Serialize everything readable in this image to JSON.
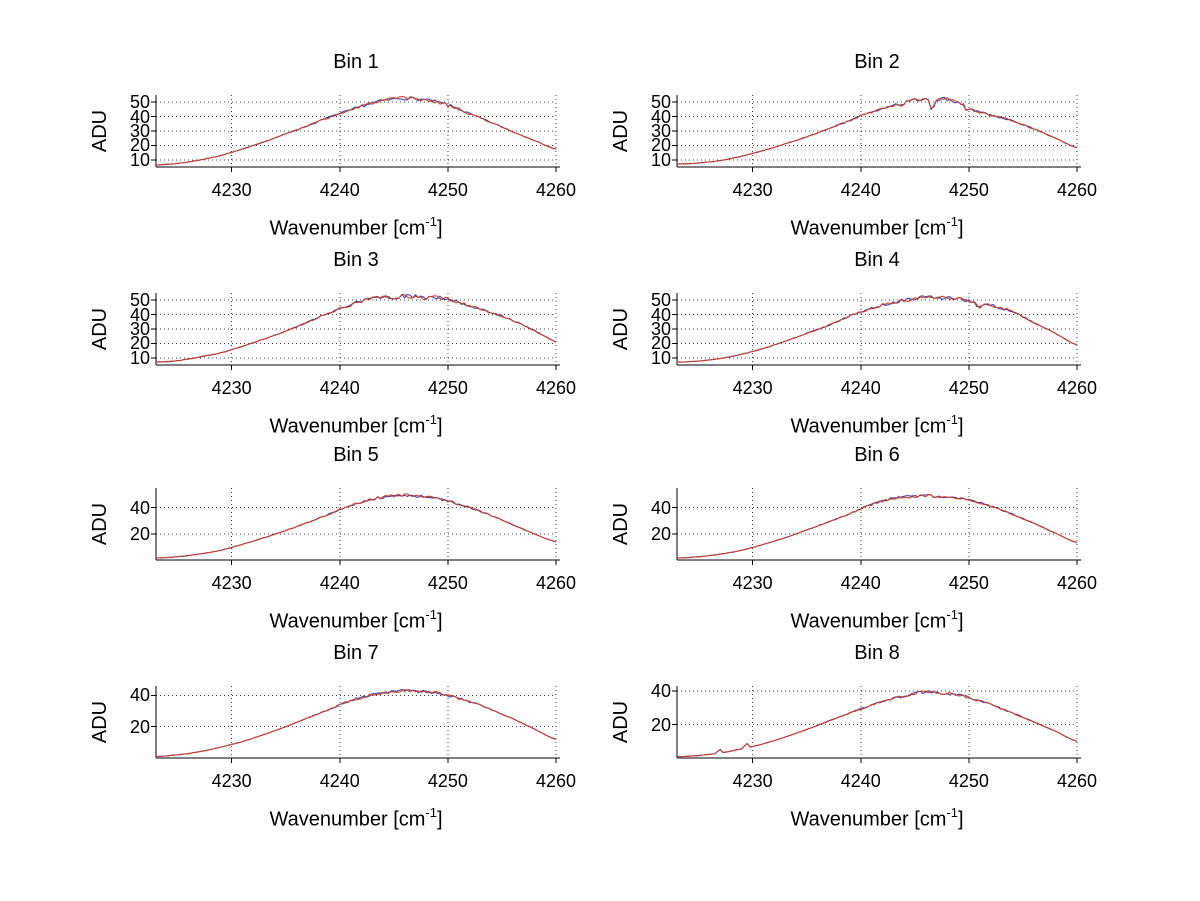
{
  "figure_name": "Spectra per bin",
  "axis_labels": {
    "y": "ADU",
    "x_base": "Wavenumber [cm",
    "x_sup": "-1",
    "x_close": "]"
  },
  "colors": {
    "line": "#c8402c",
    "underlay": "#4343ae",
    "grid": "#3c3c3c",
    "axis": "#000000",
    "text": "#000000",
    "background": "#ffffff"
  },
  "chart_data": [
    {
      "type": "line",
      "title": "Bin 1",
      "xlabel": "Wavenumber [cm^-1]",
      "ylabel": "ADU",
      "xlim": [
        4223,
        4260
      ],
      "ylim": [
        5,
        55
      ],
      "xticks": [
        4230,
        4240,
        4250,
        4260
      ],
      "yticks": [
        10,
        20,
        30,
        40,
        50
      ],
      "grid": "dotted",
      "legend": "none",
      "noise_amp": 0.8,
      "spikes": [],
      "points": [
        [
          4223,
          6.5
        ],
        [
          4225,
          7.5
        ],
        [
          4227,
          9.8
        ],
        [
          4229,
          13
        ],
        [
          4231,
          17.5
        ],
        [
          4233,
          22.5
        ],
        [
          4235,
          28
        ],
        [
          4237,
          33.5
        ],
        [
          4239,
          39.5
        ],
        [
          4241,
          44.5
        ],
        [
          4243,
          49.5
        ],
        [
          4245,
          52
        ],
        [
          4246,
          52.8
        ],
        [
          4248,
          51.5
        ],
        [
          4249,
          50
        ],
        [
          4250,
          48
        ],
        [
          4252,
          42
        ],
        [
          4254,
          36
        ],
        [
          4256,
          29.5
        ],
        [
          4258,
          23.5
        ],
        [
          4260,
          17.5
        ]
      ]
    },
    {
      "type": "line",
      "title": "Bin 2",
      "xlabel": "Wavenumber [cm^-1]",
      "ylabel": "ADU",
      "xlim": [
        4223,
        4260
      ],
      "ylim": [
        5,
        55
      ],
      "xticks": [
        4230,
        4240,
        4250,
        4260
      ],
      "yticks": [
        10,
        20,
        30,
        40,
        50
      ],
      "grid": "dotted",
      "legend": "none",
      "noise_amp": 0.8,
      "spikes": [
        {
          "x": 4246.6,
          "dv": -10.5,
          "w": 0.16
        },
        {
          "x": 4243.6,
          "dv": -2.5,
          "w": 0.14
        },
        {
          "x": 4249.8,
          "dv": -2.0,
          "w": 0.12
        }
      ],
      "points": [
        [
          4223,
          7
        ],
        [
          4225,
          7.8
        ],
        [
          4227,
          9.5
        ],
        [
          4229,
          12.5
        ],
        [
          4231,
          16.5
        ],
        [
          4233,
          21
        ],
        [
          4235,
          26
        ],
        [
          4237,
          31.5
        ],
        [
          4239,
          37.5
        ],
        [
          4241,
          43
        ],
        [
          4243,
          47.5
        ],
        [
          4244,
          49.5
        ],
        [
          4245,
          51.5
        ],
        [
          4246,
          52.5
        ],
        [
          4247,
          52
        ],
        [
          4248,
          52
        ],
        [
          4249,
          50
        ],
        [
          4250,
          45.5
        ],
        [
          4252,
          41
        ],
        [
          4254,
          37
        ],
        [
          4256,
          31.5
        ],
        [
          4258,
          25
        ],
        [
          4260,
          18.5
        ]
      ]
    },
    {
      "type": "line",
      "title": "Bin 3",
      "xlabel": "Wavenumber [cm^-1]",
      "ylabel": "ADU",
      "xlim": [
        4223,
        4260
      ],
      "ylim": [
        5,
        55
      ],
      "xticks": [
        4230,
        4240,
        4250,
        4260
      ],
      "yticks": [
        10,
        20,
        30,
        40,
        50
      ],
      "grid": "dotted",
      "legend": "none",
      "noise_amp": 0.9,
      "spikes": [],
      "points": [
        [
          4223,
          7
        ],
        [
          4225,
          8
        ],
        [
          4227,
          10.5
        ],
        [
          4229,
          13.5
        ],
        [
          4231,
          18
        ],
        [
          4233,
          23
        ],
        [
          4235,
          28.5
        ],
        [
          4237,
          34.5
        ],
        [
          4239,
          41
        ],
        [
          4241,
          46.5
        ],
        [
          4242,
          49.5
        ],
        [
          4243,
          51
        ],
        [
          4244,
          52
        ],
        [
          4245,
          52
        ],
        [
          4246,
          53
        ],
        [
          4247,
          52.5
        ],
        [
          4248,
          51.5
        ],
        [
          4249,
          52
        ],
        [
          4250,
          50.5
        ],
        [
          4251,
          48.5
        ],
        [
          4252,
          46
        ],
        [
          4254,
          41.5
        ],
        [
          4256,
          36
        ],
        [
          4258,
          29
        ],
        [
          4259,
          25
        ],
        [
          4260,
          21
        ]
      ]
    },
    {
      "type": "line",
      "title": "Bin 4",
      "xlabel": "Wavenumber [cm^-1]",
      "ylabel": "ADU",
      "xlim": [
        4223,
        4260
      ],
      "ylim": [
        5,
        55
      ],
      "xticks": [
        4230,
        4240,
        4250,
        4260
      ],
      "yticks": [
        10,
        20,
        30,
        40,
        50
      ],
      "grid": "dotted",
      "legend": "none",
      "noise_amp": 0.8,
      "spikes": [
        {
          "x": 4250.9,
          "dv": -2.5,
          "w": 0.2
        }
      ],
      "points": [
        [
          4223,
          7
        ],
        [
          4225,
          7.8
        ],
        [
          4227,
          9.5
        ],
        [
          4229,
          12.5
        ],
        [
          4231,
          16.5
        ],
        [
          4233,
          21.5
        ],
        [
          4235,
          27
        ],
        [
          4237,
          32.5
        ],
        [
          4239,
          39
        ],
        [
          4241,
          44.5
        ],
        [
          4243,
          48.5
        ],
        [
          4244,
          50
        ],
        [
          4245,
          51
        ],
        [
          4246,
          52
        ],
        [
          4247,
          52
        ],
        [
          4248,
          51.5
        ],
        [
          4249,
          51
        ],
        [
          4250,
          49.5
        ],
        [
          4251,
          47
        ],
        [
          4252,
          46.5
        ],
        [
          4253,
          44.5
        ],
        [
          4254,
          42
        ],
        [
          4256,
          34.5
        ],
        [
          4258,
          27
        ],
        [
          4260,
          19
        ]
      ]
    },
    {
      "type": "line",
      "title": "Bin 5",
      "xlabel": "Wavenumber [cm^-1]",
      "ylabel": "ADU",
      "xlim": [
        4223,
        4260
      ],
      "ylim": [
        0,
        55
      ],
      "xticks": [
        4230,
        4240,
        4250,
        4260
      ],
      "yticks": [
        20,
        40
      ],
      "grid": "dotted",
      "legend": "none",
      "noise_amp": 0.7,
      "spikes": [],
      "points": [
        [
          4223,
          1.5
        ],
        [
          4225,
          2.5
        ],
        [
          4227,
          4.5
        ],
        [
          4229,
          7.5
        ],
        [
          4231,
          12
        ],
        [
          4233,
          17
        ],
        [
          4235,
          22.5
        ],
        [
          4237,
          28.5
        ],
        [
          4239,
          35
        ],
        [
          4241,
          41.5
        ],
        [
          4243,
          46.5
        ],
        [
          4245,
          49
        ],
        [
          4246,
          49.5
        ],
        [
          4247,
          49
        ],
        [
          4248,
          48
        ],
        [
          4250,
          45
        ],
        [
          4252,
          40
        ],
        [
          4254,
          34
        ],
        [
          4256,
          27
        ],
        [
          4258,
          20
        ],
        [
          4260,
          14
        ]
      ]
    },
    {
      "type": "line",
      "title": "Bin 6",
      "xlabel": "Wavenumber [cm^-1]",
      "ylabel": "ADU",
      "xlim": [
        4223,
        4260
      ],
      "ylim": [
        0,
        55
      ],
      "xticks": [
        4230,
        4240,
        4250,
        4260
      ],
      "yticks": [
        20,
        40
      ],
      "grid": "dotted",
      "legend": "none",
      "noise_amp": 0.7,
      "spikes": [],
      "points": [
        [
          4223,
          1.5
        ],
        [
          4225,
          2.5
        ],
        [
          4227,
          4.5
        ],
        [
          4229,
          7.5
        ],
        [
          4231,
          12
        ],
        [
          4233,
          17
        ],
        [
          4235,
          23
        ],
        [
          4237,
          29
        ],
        [
          4239,
          35.5
        ],
        [
          4241,
          42.5
        ],
        [
          4243,
          47
        ],
        [
          4244,
          48
        ],
        [
          4245,
          48.5
        ],
        [
          4246,
          49
        ],
        [
          4247,
          48.5
        ],
        [
          4248,
          48
        ],
        [
          4249,
          47
        ],
        [
          4250,
          45.5
        ],
        [
          4251,
          43.5
        ],
        [
          4252,
          41
        ],
        [
          4254,
          35
        ],
        [
          4256,
          28
        ],
        [
          4258,
          20.5
        ],
        [
          4260,
          13.5
        ]
      ]
    },
    {
      "type": "line",
      "title": "Bin 7",
      "xlabel": "Wavenumber [cm^-1]",
      "ylabel": "ADU",
      "xlim": [
        4223,
        4260
      ],
      "ylim": [
        0,
        46
      ],
      "xticks": [
        4230,
        4240,
        4250,
        4260
      ],
      "yticks": [
        20,
        40
      ],
      "grid": "dotted",
      "legend": "none",
      "noise_amp": 0.6,
      "spikes": [],
      "points": [
        [
          4223,
          1
        ],
        [
          4225,
          2
        ],
        [
          4227,
          4
        ],
        [
          4229,
          7
        ],
        [
          4231,
          10.5
        ],
        [
          4233,
          15
        ],
        [
          4235,
          20
        ],
        [
          4237,
          25.5
        ],
        [
          4239,
          31
        ],
        [
          4241,
          36.5
        ],
        [
          4242,
          38.5
        ],
        [
          4243,
          40.5
        ],
        [
          4244,
          41.5
        ],
        [
          4245,
          42.5
        ],
        [
          4246,
          43
        ],
        [
          4247,
          42.5
        ],
        [
          4248,
          42.5
        ],
        [
          4249,
          41.5
        ],
        [
          4250,
          40
        ],
        [
          4251,
          38
        ],
        [
          4252,
          36
        ],
        [
          4254,
          31
        ],
        [
          4256,
          25
        ],
        [
          4258,
          18.5
        ],
        [
          4260,
          12
        ]
      ]
    },
    {
      "type": "line",
      "title": "Bin 8",
      "xlabel": "Wavenumber [cm^-1]",
      "ylabel": "ADU",
      "xlim": [
        4223,
        4260
      ],
      "ylim": [
        0,
        43
      ],
      "xticks": [
        4230,
        4240,
        4250,
        4260
      ],
      "yticks": [
        20,
        40
      ],
      "grid": "dotted",
      "legend": "none",
      "noise_amp": 0.6,
      "spikes": [
        {
          "x": 4226.9,
          "dv": 3.2,
          "w": 0.15
        },
        {
          "x": 4229.4,
          "dv": 3.8,
          "w": 0.15
        }
      ],
      "points": [
        [
          4223,
          0.8
        ],
        [
          4225,
          1.5
        ],
        [
          4227,
          3
        ],
        [
          4229,
          5.5
        ],
        [
          4231,
          8.5
        ],
        [
          4233,
          12.5
        ],
        [
          4235,
          17
        ],
        [
          4237,
          22
        ],
        [
          4239,
          27
        ],
        [
          4241,
          31.5
        ],
        [
          4243,
          35.5
        ],
        [
          4244,
          37
        ],
        [
          4245,
          38.5
        ],
        [
          4246,
          39.5
        ],
        [
          4247,
          39
        ],
        [
          4248,
          38.5
        ],
        [
          4249,
          37.5
        ],
        [
          4250,
          36
        ],
        [
          4252,
          32
        ],
        [
          4254,
          27
        ],
        [
          4256,
          21.5
        ],
        [
          4258,
          16
        ],
        [
          4260,
          10
        ]
      ]
    }
  ]
}
